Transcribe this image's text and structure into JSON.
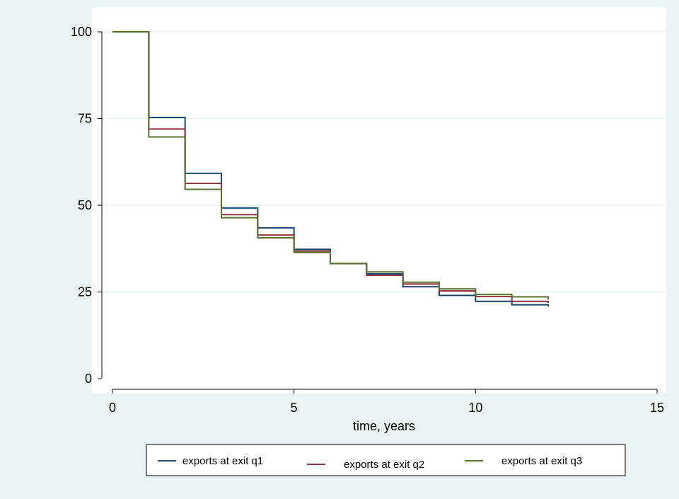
{
  "chart_data": {
    "type": "line",
    "step": true,
    "xlabel": "time, years",
    "ylabel": "",
    "xlim": [
      0,
      15
    ],
    "ylim": [
      0,
      100
    ],
    "x_ticks": [
      0,
      5,
      10,
      15
    ],
    "y_ticks": [
      0,
      25,
      50,
      75,
      100
    ],
    "grid": "horizontal",
    "legend_position": "bottom",
    "x": [
      0,
      1,
      2,
      3,
      4,
      5,
      6,
      7,
      8,
      9,
      10,
      11,
      12
    ],
    "series": [
      {
        "name": "exports at exit q1",
        "color": "#1A476F",
        "values": [
          100,
          75.3,
          59.2,
          49.2,
          43.5,
          37.3,
          33.2,
          30.2,
          26.5,
          24.0,
          22.3,
          21.3,
          20.8
        ]
      },
      {
        "name": "exports at exit q2",
        "color": "#90353B",
        "values": [
          100,
          72.0,
          56.3,
          47.3,
          41.4,
          36.8,
          33.2,
          29.8,
          27.3,
          25.3,
          23.7,
          22.3,
          21.8
        ]
      },
      {
        "name": "exports at exit q3",
        "color": "#55752F",
        "values": [
          100,
          69.7,
          54.6,
          46.4,
          40.6,
          36.4,
          33.2,
          30.8,
          27.8,
          25.9,
          24.3,
          23.6,
          22.8
        ]
      }
    ]
  },
  "colors": {
    "background": "#EAF2F3",
    "plot_background": "#FFFFFF",
    "grid": "#EAF2F3",
    "axis": "#000000"
  }
}
